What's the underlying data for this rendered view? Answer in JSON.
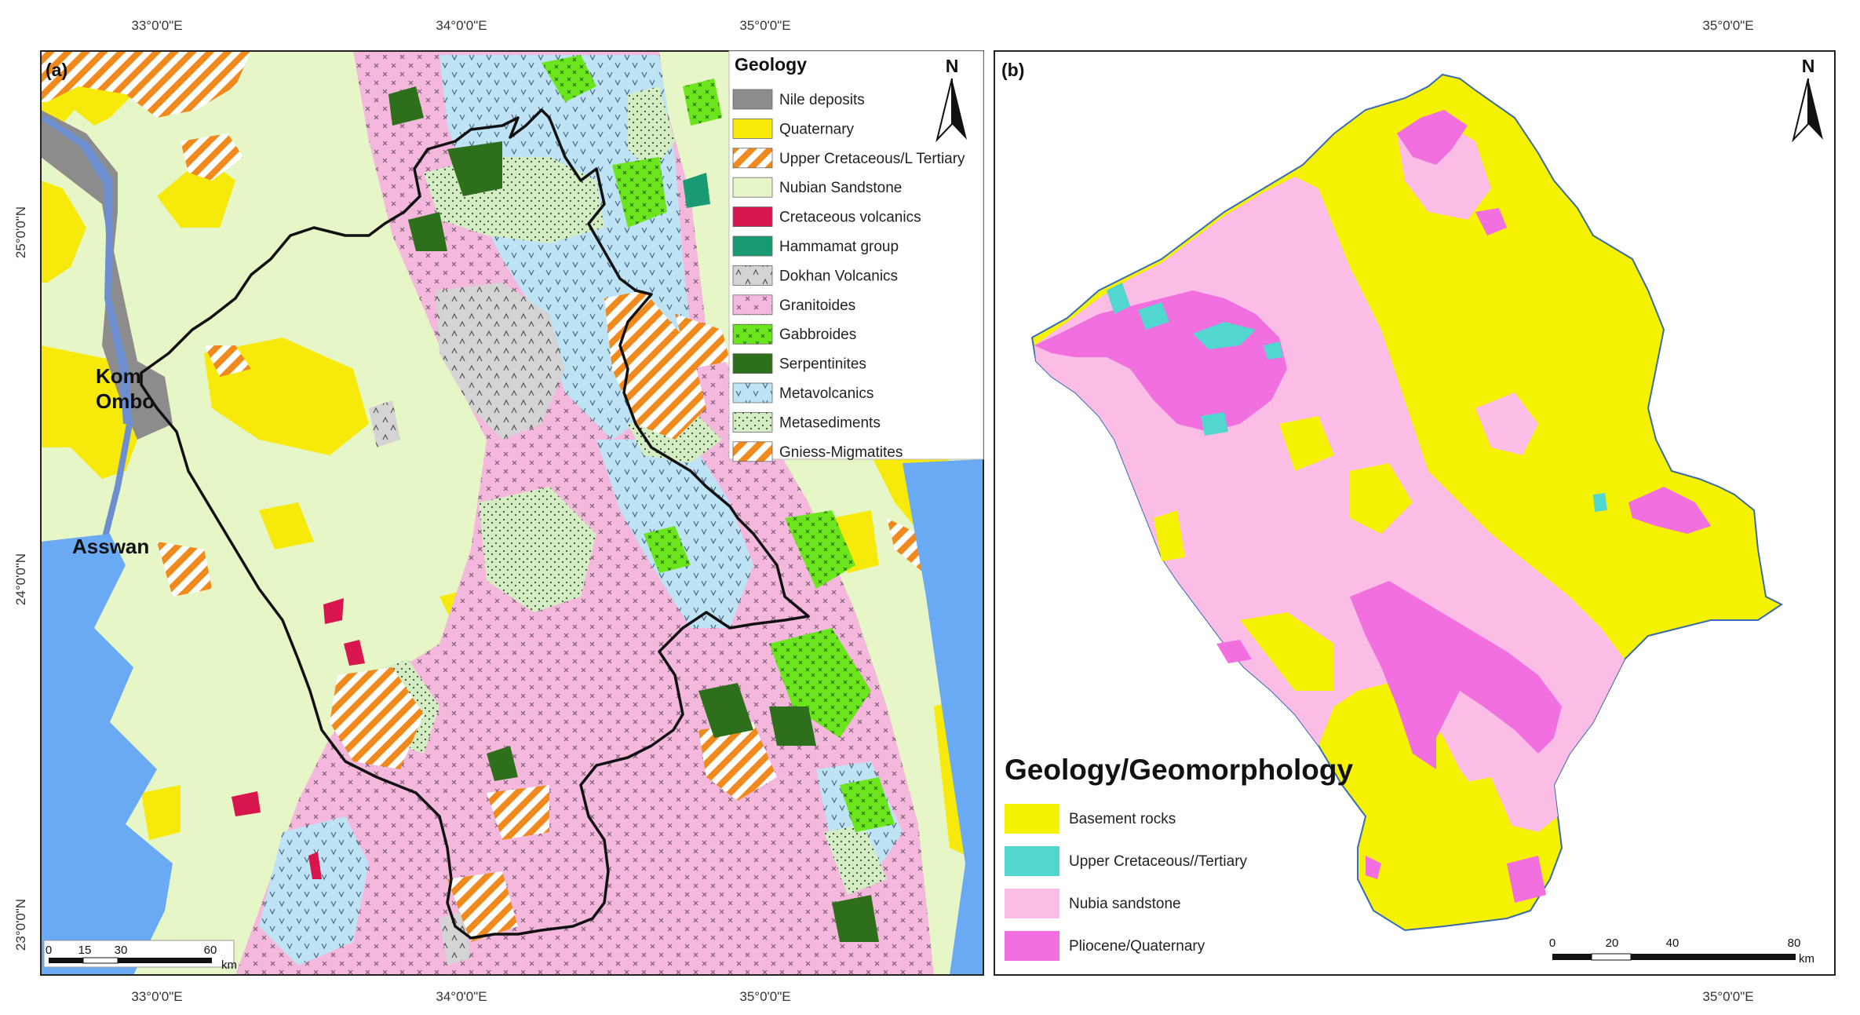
{
  "panel_a": {
    "label": "(a)",
    "top_ticks": [
      "33°0'0\"E",
      "34°0'0\"E",
      "35°0'0\"E"
    ],
    "bottom_ticks": [
      "33°0'0\"E",
      "34°0'0\"E",
      "35°0'0\"E"
    ],
    "left_ticks": [
      "25°0'0\"N",
      "24°0'0\"N",
      "23°0'0\"N"
    ],
    "north": "N",
    "places": {
      "kom": "Kom",
      "ombo": "Ombo",
      "asswan": "Asswan"
    },
    "legend": {
      "title": "Geology",
      "items": [
        {
          "label": "Nile deposits",
          "color": "#8c8c8c"
        },
        {
          "label": "Quaternary",
          "color": "#f7e90a"
        },
        {
          "label": "Upper Cretaceous/L Tertiary",
          "color": "#f08a1c"
        },
        {
          "label": "Nubian Sandstone",
          "color": "#e6f6c6"
        },
        {
          "label": "Cretaceous volcanics",
          "color": "#d8154c"
        },
        {
          "label": "Hammamat group",
          "color": "#1a9a72"
        },
        {
          "label": "Dokhan Volcanics",
          "color": "#d4d4d4"
        },
        {
          "label": "Granitoides",
          "color": "#f4b8dc"
        },
        {
          "label": "Gabbroides",
          "color": "#6be61c"
        },
        {
          "label": "Serpentinites",
          "color": "#2e6f1c"
        },
        {
          "label": "Metavolcanics",
          "color": "#bde3f5"
        },
        {
          "label": "Metasediments",
          "color": "#d6ecc4"
        },
        {
          "label": "Gniess-Migmatites",
          "color": "#f08a1c"
        }
      ]
    },
    "scale": {
      "labels": [
        "0",
        "15",
        "30",
        "60"
      ],
      "unit": "km"
    }
  },
  "panel_b": {
    "label": "(b)",
    "top_tick": "35°0'0\"E",
    "bottom_tick": "35°0'0\"E",
    "north": "N",
    "legend": {
      "title": "Geology/Geomorphology",
      "items": [
        {
          "label": "Basement rocks",
          "color": "#f5f200"
        },
        {
          "label": "Upper Cretaceous//Tertiary",
          "color": "#52d6d0"
        },
        {
          "label": "Nubia sandstone",
          "color": "#fbbde6"
        },
        {
          "label": "Pliocene/Quaternary",
          "color": "#f26fe0"
        }
      ]
    },
    "scale": {
      "labels": [
        "0",
        "20",
        "40",
        "80"
      ],
      "unit": "km"
    }
  },
  "colors": {
    "sea": "#6aaaf5",
    "nile": "#6d8fd0",
    "boundary": "#111111"
  }
}
